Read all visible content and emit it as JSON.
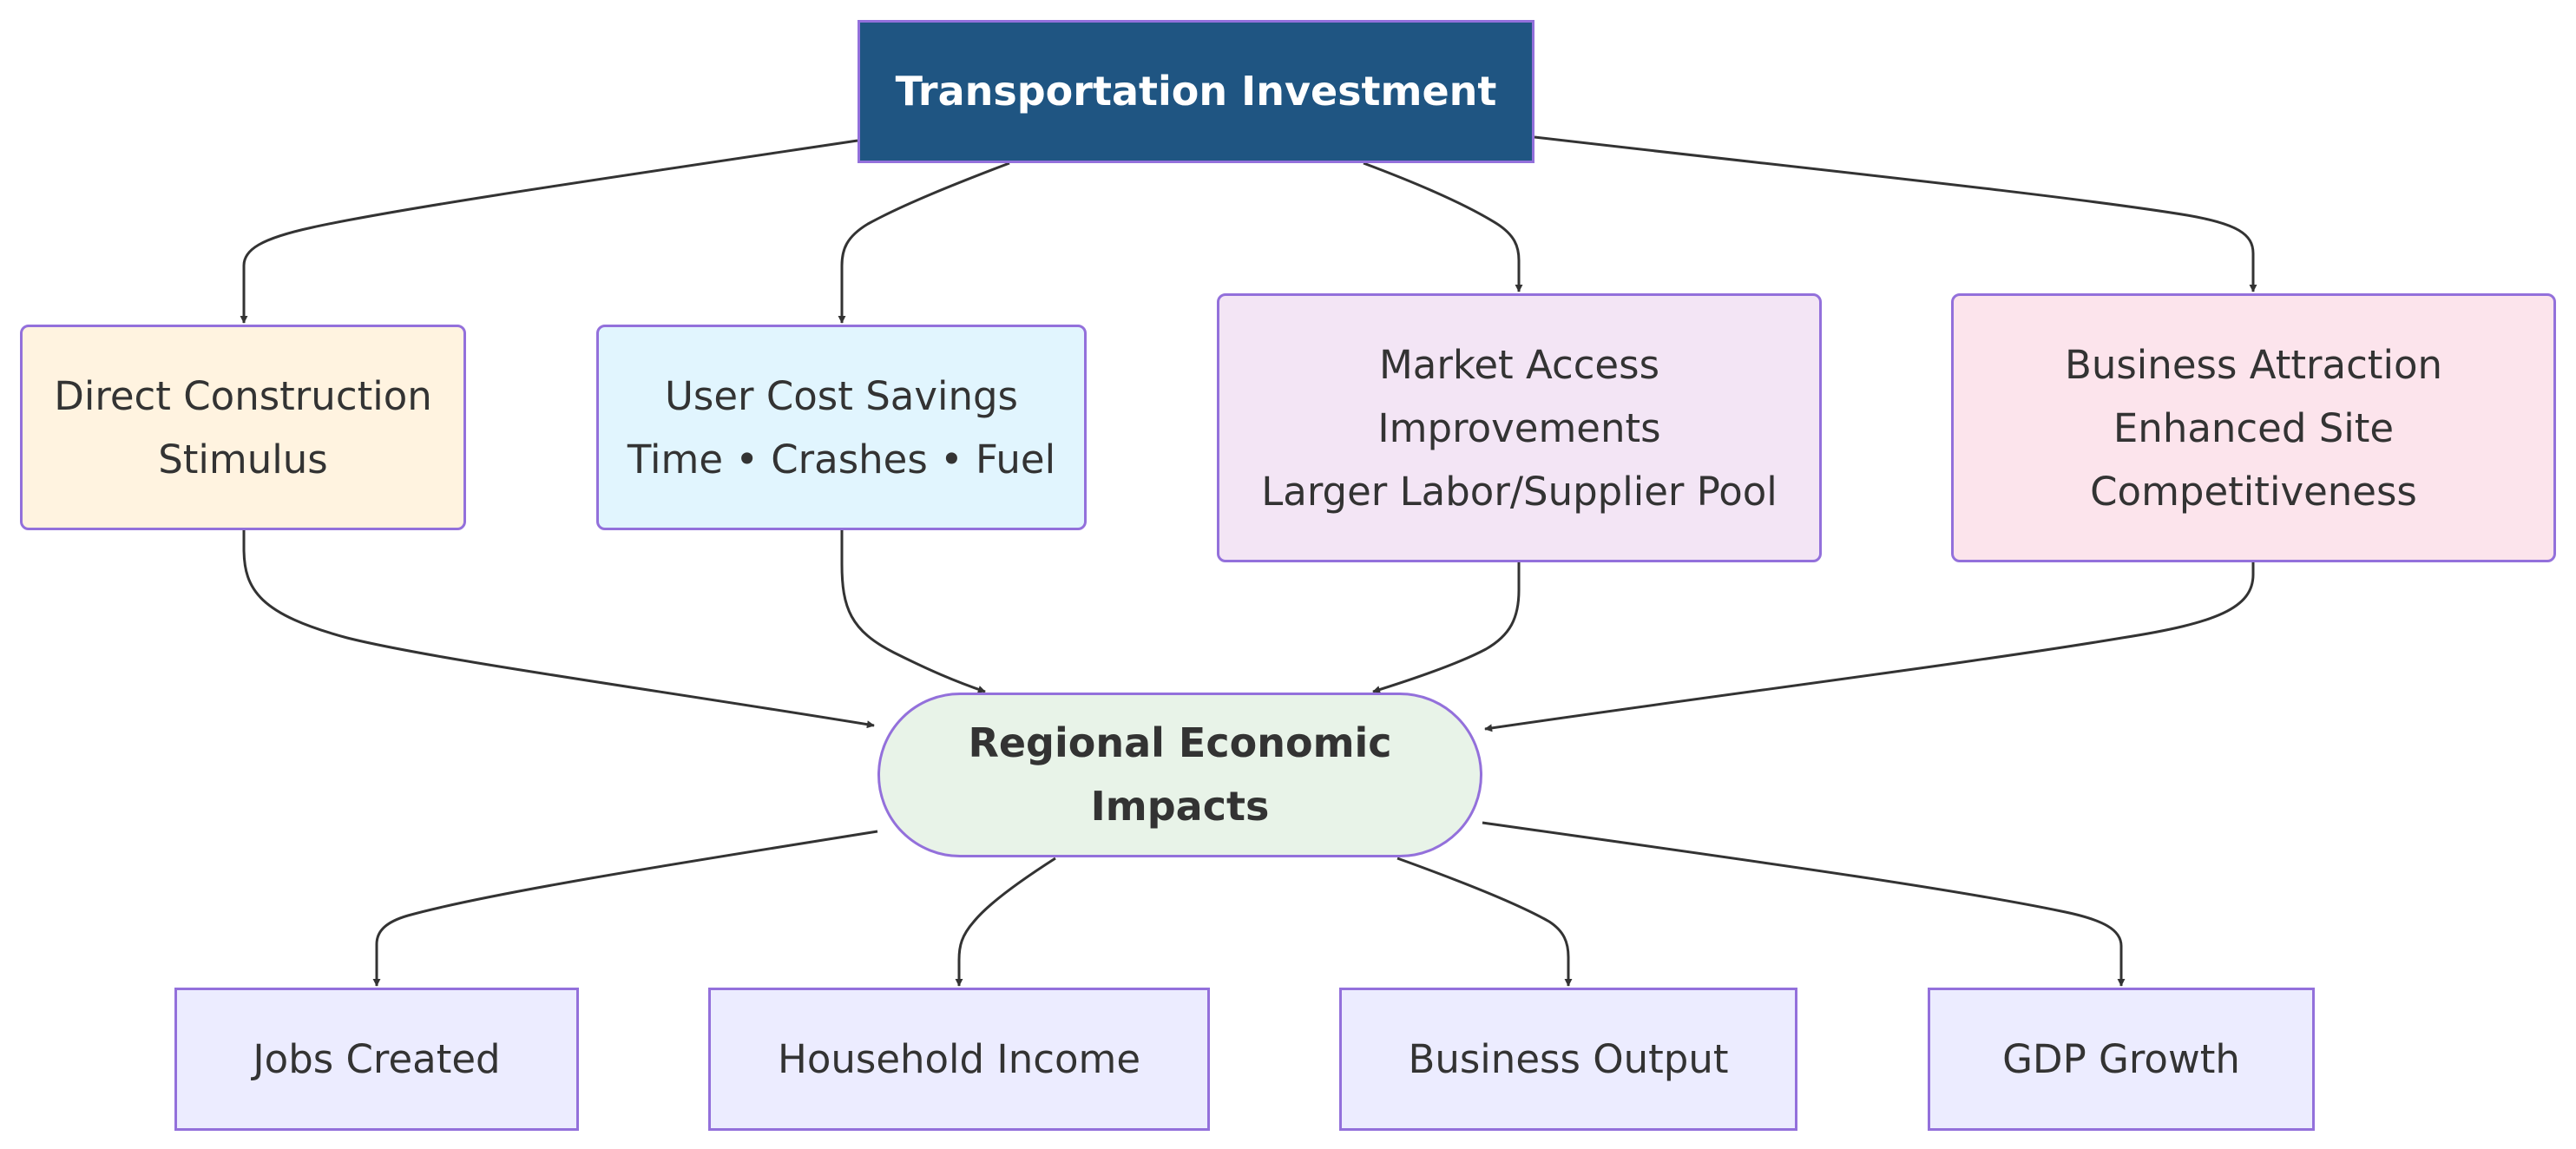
{
  "diagram": {
    "root": {
      "lines": [
        "Transportation Investment"
      ],
      "fill": "#1f5582",
      "text_color": "#ffffff"
    },
    "channels": [
      {
        "lines": [
          "Direct Construction",
          "Stimulus"
        ],
        "fill": "#fff3e0"
      },
      {
        "lines": [
          "User Cost Savings",
          "Time • Crashes • Fuel"
        ],
        "fill": "#e1f5fe"
      },
      {
        "lines": [
          "Market Access",
          "Improvements",
          "Larger Labor/Supplier Pool"
        ],
        "fill": "#f3e5f5"
      },
      {
        "lines": [
          "Business Attraction",
          "Enhanced Site",
          "Competitiveness"
        ],
        "fill": "#fce4ec"
      }
    ],
    "hub": {
      "lines": [
        "Regional Economic",
        "Impacts"
      ],
      "fill": "#e8f3e8"
    },
    "outcomes": [
      {
        "lines": [
          "Jobs Created"
        ]
      },
      {
        "lines": [
          "Household Income"
        ]
      },
      {
        "lines": [
          "Business Output"
        ]
      },
      {
        "lines": [
          "GDP Growth"
        ]
      }
    ],
    "colors": {
      "node_border": "#9370DB",
      "outcome_fill": "#ececff",
      "edge": "#333333"
    }
  }
}
